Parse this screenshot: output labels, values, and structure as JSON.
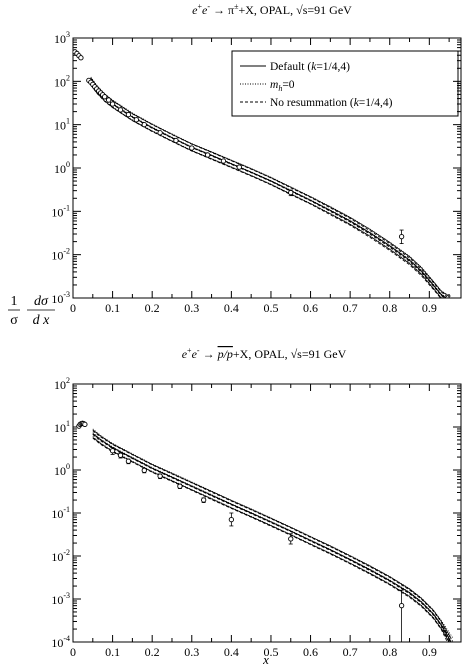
{
  "chart_data": [
    {
      "type": "line",
      "title": "e⁺e⁻ → π^± + X, OPAL, √s=91 GeV",
      "title_parts": {
        "pre": "e",
        "sup1": "+",
        "mid": "e",
        "sup2": "-",
        "arrow": " → π",
        "sup3": "±",
        "post": "+X, OPAL, √s=91 GeV"
      },
      "xlabel": "",
      "ylabel": "1/σ dσ/dx",
      "ylabel_parts": {
        "one": "1",
        "sigma": "σ",
        "num": "dσ",
        "den": "d x"
      },
      "xlim": [
        0,
        0.98
      ],
      "ylim": [
        0.001,
        1000
      ],
      "yscale": "log",
      "x_ticks": [
        0,
        0.1,
        0.2,
        0.3,
        0.4,
        0.5,
        0.6,
        0.7,
        0.8,
        0.9
      ],
      "x_tick_labels": [
        "0",
        "0.1",
        "0.2",
        "0.3",
        "0.4",
        "0.5",
        "0.6",
        "0.7",
        "0.8",
        "0.9"
      ],
      "y_tick_exponents": [
        "3",
        "2",
        "1",
        "0",
        "-1",
        "-2",
        "-3"
      ],
      "legend": {
        "placement": "top-right",
        "entries": [
          {
            "label_pre": "Default (",
            "label_it": "k",
            "label_post": "=1/4,4)",
            "style": "solid"
          },
          {
            "label_pre": "",
            "label_it": "m",
            "label_sub": "h",
            "label_post": "=0",
            "style": "dotted"
          },
          {
            "label_pre": "No resummation (",
            "label_it": "k",
            "label_post": "=1/4,4)",
            "style": "dashed"
          }
        ]
      },
      "series": [
        {
          "style": "solid",
          "values": [
            [
              0.045,
              100
            ],
            [
              0.06,
              65
            ],
            [
              0.08,
              42
            ],
            [
              0.1,
              30
            ],
            [
              0.15,
              15
            ],
            [
              0.2,
              8.5
            ],
            [
              0.25,
              5.0
            ],
            [
              0.3,
              3.0
            ],
            [
              0.35,
              1.95
            ],
            [
              0.4,
              1.25
            ],
            [
              0.45,
              0.8
            ],
            [
              0.5,
              0.5
            ],
            [
              0.55,
              0.3
            ],
            [
              0.6,
              0.18
            ],
            [
              0.65,
              0.105
            ],
            [
              0.7,
              0.06
            ],
            [
              0.75,
              0.032
            ],
            [
              0.8,
              0.016
            ],
            [
              0.85,
              0.0075
            ],
            [
              0.88,
              0.0042
            ],
            [
              0.91,
              0.002
            ],
            [
              0.93,
              0.0012
            ],
            [
              0.95,
              0.0009
            ]
          ]
        },
        {
          "style": "dotted",
          "values": [
            [
              0.045,
              105
            ],
            [
              0.06,
              68
            ],
            [
              0.08,
              43
            ],
            [
              0.1,
              31
            ],
            [
              0.15,
              15.5
            ],
            [
              0.2,
              8.7
            ],
            [
              0.25,
              5.1
            ],
            [
              0.3,
              3.05
            ],
            [
              0.35,
              1.98
            ],
            [
              0.4,
              1.27
            ],
            [
              0.45,
              0.81
            ],
            [
              0.5,
              0.51
            ],
            [
              0.55,
              0.305
            ],
            [
              0.6,
              0.183
            ],
            [
              0.65,
              0.107
            ],
            [
              0.7,
              0.061
            ],
            [
              0.75,
              0.0325
            ],
            [
              0.8,
              0.0163
            ],
            [
              0.85,
              0.0077
            ],
            [
              0.88,
              0.0043
            ],
            [
              0.91,
              0.00205
            ],
            [
              0.93,
              0.00123
            ],
            [
              0.955,
              0.0009
            ]
          ]
        },
        {
          "style": "dashed",
          "values": [
            [
              0.045,
              98
            ],
            [
              0.06,
              64
            ],
            [
              0.08,
              41
            ],
            [
              0.1,
              29.5
            ],
            [
              0.15,
              14.8
            ],
            [
              0.2,
              8.3
            ],
            [
              0.25,
              4.9
            ],
            [
              0.3,
              2.95
            ],
            [
              0.35,
              1.9
            ],
            [
              0.4,
              1.22
            ],
            [
              0.45,
              0.78
            ],
            [
              0.5,
              0.49
            ],
            [
              0.55,
              0.29
            ],
            [
              0.6,
              0.175
            ],
            [
              0.65,
              0.1
            ],
            [
              0.7,
              0.057
            ],
            [
              0.75,
              0.03
            ],
            [
              0.8,
              0.015
            ],
            [
              0.85,
              0.007
            ],
            [
              0.88,
              0.0039
            ],
            [
              0.91,
              0.0019
            ],
            [
              0.93,
              0.00115
            ],
            [
              0.945,
              0.0009
            ]
          ]
        }
      ],
      "band_factor": 1.2,
      "data_points": [
        {
          "x": 0.005,
          "y": 480
        },
        {
          "x": 0.01,
          "y": 440
        },
        {
          "x": 0.015,
          "y": 390
        },
        {
          "x": 0.02,
          "y": 350
        },
        {
          "x": 0.04,
          "y": 105
        },
        {
          "x": 0.045,
          "y": 95
        },
        {
          "x": 0.05,
          "y": 85
        },
        {
          "x": 0.055,
          "y": 75
        },
        {
          "x": 0.06,
          "y": 67
        },
        {
          "x": 0.065,
          "y": 60
        },
        {
          "x": 0.07,
          "y": 54
        },
        {
          "x": 0.075,
          "y": 49
        },
        {
          "x": 0.08,
          "y": 44
        },
        {
          "x": 0.09,
          "y": 37
        },
        {
          "x": 0.1,
          "y": 30
        },
        {
          "x": 0.12,
          "y": 22
        },
        {
          "x": 0.14,
          "y": 17
        },
        {
          "x": 0.16,
          "y": 13
        },
        {
          "x": 0.18,
          "y": 10
        },
        {
          "x": 0.22,
          "y": 6.5
        },
        {
          "x": 0.26,
          "y": 4.3
        },
        {
          "x": 0.3,
          "y": 2.9
        },
        {
          "x": 0.34,
          "y": 2.0
        },
        {
          "x": 0.38,
          "y": 1.45
        },
        {
          "x": 0.42,
          "y": 1.05
        },
        {
          "x": 0.55,
          "y": 0.27,
          "err": 0.04
        },
        {
          "x": 0.83,
          "y": 0.026,
          "lo": 0.018,
          "hi": 0.037
        }
      ]
    },
    {
      "type": "line",
      "title": "e⁺e⁻ → p/p̄+X, OPAL, √s=91 GeV",
      "title_parts": {
        "pre": "e",
        "sup1": "+",
        "mid": "e",
        "sup2": "-",
        "arrow": " → ",
        "post": "+X, OPAL, √s=91 GeV",
        "pp": "p/p"
      },
      "xlabel": "x",
      "ylabel": "",
      "xlim": [
        0,
        0.98
      ],
      "ylim": [
        0.0001,
        100
      ],
      "yscale": "log",
      "x_ticks": [
        0,
        0.1,
        0.2,
        0.3,
        0.4,
        0.5,
        0.6,
        0.7,
        0.8,
        0.9
      ],
      "x_tick_labels": [
        "0",
        "0.1",
        "0.2",
        "0.3",
        "0.4",
        "0.5",
        "0.6",
        "0.7",
        "0.8",
        "0.9"
      ],
      "y_tick_exponents": [
        "2",
        "1",
        "0",
        "-1",
        "-2",
        "-3",
        "-4"
      ],
      "series": [
        {
          "style": "solid",
          "values": [
            [
              0.05,
              7.0
            ],
            [
              0.07,
              5.0
            ],
            [
              0.1,
              3.3
            ],
            [
              0.15,
              1.9
            ],
            [
              0.2,
              1.1
            ],
            [
              0.25,
              0.68
            ],
            [
              0.3,
              0.42
            ],
            [
              0.35,
              0.26
            ],
            [
              0.4,
              0.16
            ],
            [
              0.45,
              0.1
            ],
            [
              0.5,
              0.062
            ],
            [
              0.55,
              0.038
            ],
            [
              0.6,
              0.023
            ],
            [
              0.65,
              0.014
            ],
            [
              0.7,
              0.0083
            ],
            [
              0.75,
              0.0048
            ],
            [
              0.8,
              0.0027
            ],
            [
              0.85,
              0.0014
            ],
            [
              0.88,
              0.00085
            ],
            [
              0.91,
              0.00045
            ],
            [
              0.93,
              0.00025
            ],
            [
              0.955,
              0.0001
            ]
          ]
        },
        {
          "style": "dotted",
          "values": [
            [
              0.05,
              7.4
            ],
            [
              0.07,
              5.2
            ],
            [
              0.1,
              3.4
            ],
            [
              0.15,
              1.95
            ],
            [
              0.2,
              1.13
            ],
            [
              0.25,
              0.7
            ],
            [
              0.3,
              0.43
            ],
            [
              0.35,
              0.265
            ],
            [
              0.4,
              0.163
            ],
            [
              0.45,
              0.102
            ],
            [
              0.5,
              0.063
            ],
            [
              0.55,
              0.0385
            ],
            [
              0.6,
              0.0233
            ],
            [
              0.65,
              0.0142
            ],
            [
              0.7,
              0.0084
            ],
            [
              0.75,
              0.0049
            ],
            [
              0.8,
              0.00275
            ],
            [
              0.85,
              0.00143
            ],
            [
              0.88,
              0.00087
            ],
            [
              0.91,
              0.00046
            ],
            [
              0.93,
              0.00026
            ],
            [
              0.96,
              0.0001
            ]
          ]
        },
        {
          "style": "dashed",
          "values": [
            [
              0.05,
              6.7
            ],
            [
              0.07,
              4.8
            ],
            [
              0.1,
              3.2
            ],
            [
              0.15,
              1.85
            ],
            [
              0.2,
              1.07
            ],
            [
              0.25,
              0.66
            ],
            [
              0.3,
              0.41
            ],
            [
              0.35,
              0.25
            ],
            [
              0.4,
              0.155
            ],
            [
              0.45,
              0.097
            ],
            [
              0.5,
              0.06
            ],
            [
              0.55,
              0.037
            ],
            [
              0.6,
              0.0222
            ],
            [
              0.65,
              0.0135
            ],
            [
              0.7,
              0.008
            ],
            [
              0.75,
              0.0046
            ],
            [
              0.8,
              0.0026
            ],
            [
              0.85,
              0.00133
            ],
            [
              0.88,
              0.00081
            ],
            [
              0.91,
              0.00043
            ],
            [
              0.93,
              0.00024
            ],
            [
              0.95,
              0.0001
            ]
          ]
        }
      ],
      "band_factor": 1.22,
      "data_points": [
        {
          "x": 0.015,
          "y": 10.5
        },
        {
          "x": 0.018,
          "y": 11.5
        },
        {
          "x": 0.021,
          "y": 12
        },
        {
          "x": 0.024,
          "y": 12.2
        },
        {
          "x": 0.027,
          "y": 12
        },
        {
          "x": 0.03,
          "y": 11.5
        },
        {
          "x": 0.1,
          "y": 2.8,
          "err": 0.5
        },
        {
          "x": 0.12,
          "y": 2.2,
          "err": 0.3
        },
        {
          "x": 0.14,
          "y": 1.6,
          "err": 0.2
        },
        {
          "x": 0.18,
          "y": 0.98,
          "err": 0.12
        },
        {
          "x": 0.22,
          "y": 0.72,
          "err": 0.09
        },
        {
          "x": 0.27,
          "y": 0.42,
          "err": 0.05
        },
        {
          "x": 0.33,
          "y": 0.2,
          "err": 0.025
        },
        {
          "x": 0.4,
          "y": 0.07,
          "lo": 0.05,
          "hi": 0.1
        },
        {
          "x": 0.55,
          "y": 0.025,
          "lo": 0.019,
          "hi": 0.033
        },
        {
          "x": 0.83,
          "y": 0.0007,
          "lo": 0.0001,
          "hi": 0.0016
        }
      ]
    }
  ]
}
